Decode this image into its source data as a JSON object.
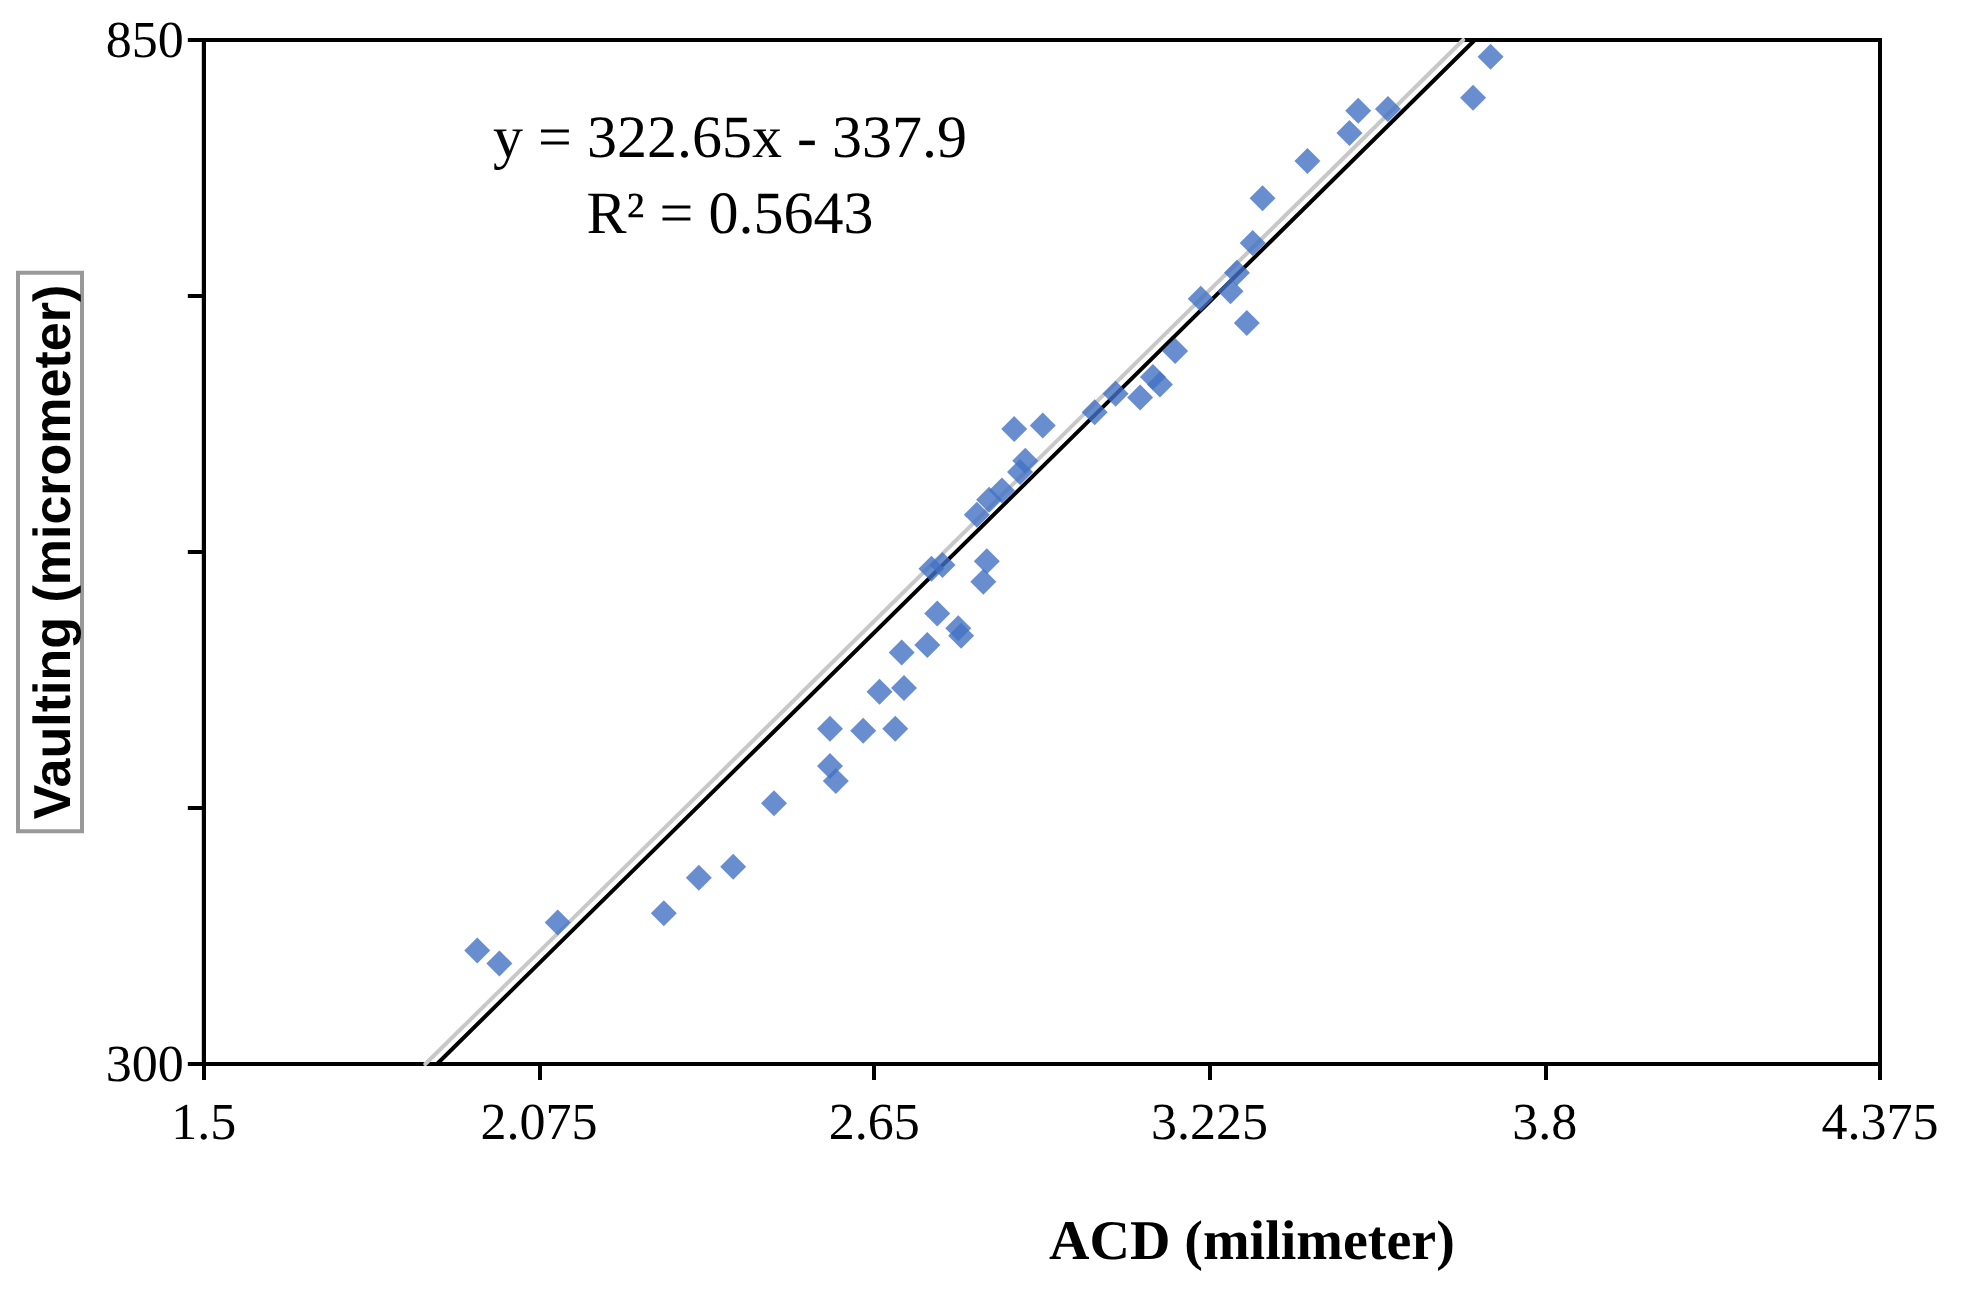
{
  "chart_data": {
    "type": "scatter",
    "xlabel": "ACD (milimeter)",
    "ylabel": "Vaulting (micrometer)",
    "annotations": [
      "y = 322.65x - 337.9",
      "R² = 0.5643"
    ],
    "xlim": [
      1.5,
      4.375
    ],
    "xticks": [
      1.5,
      2.075,
      2.65,
      3.225,
      3.8,
      4.375
    ],
    "ylim": [
      300,
      850
    ],
    "yticks": [
      300,
      {
        "value": 437.5,
        "label": null
      },
      {
        "value": 575,
        "label": null
      },
      {
        "value": 712.5,
        "label": null
      },
      850
    ],
    "grid": false,
    "marker": "diamond",
    "series": [
      {
        "color": "#4472c4",
        "x": [
          1.969,
          2.007,
          2.107,
          2.289,
          2.349,
          2.408,
          2.478,
          2.574,
          2.584,
          2.574,
          2.631,
          2.686,
          2.659,
          2.701,
          2.697,
          2.741,
          2.794,
          2.799,
          2.758,
          2.748,
          2.767,
          2.837,
          2.843,
          2.826,
          2.847,
          2.869,
          2.9,
          2.909,
          2.89,
          2.939,
          3.028,
          3.064,
          3.106,
          3.128,
          3.14,
          3.166,
          3.21,
          3.261,
          3.272,
          3.289,
          3.299,
          3.316,
          3.393,
          3.465,
          3.48,
          3.531,
          3.677,
          3.707
        ],
        "values": [
          361,
          354,
          376,
          381,
          400,
          406,
          440,
          460,
          452,
          480,
          479,
          480,
          500,
          502,
          521,
          525,
          534,
          530,
          542,
          566,
          568,
          559,
          570,
          595,
          603,
          608,
          618,
          624,
          641,
          643,
          650,
          660,
          658,
          669,
          665,
          683,
          711,
          715,
          725,
          698,
          741,
          765,
          785,
          800,
          812,
          813,
          819,
          841
        ]
      },
      {
        "type": "line",
        "color": "#c8c8c8",
        "marker": "none",
        "x": [
          1.88,
          3.66
        ],
        "values": [
          300,
          850
        ]
      },
      {
        "type": "line",
        "color": "#000000",
        "marker": "none",
        "x": [
          1.9,
          3.68
        ],
        "values": [
          300,
          850
        ]
      }
    ]
  }
}
